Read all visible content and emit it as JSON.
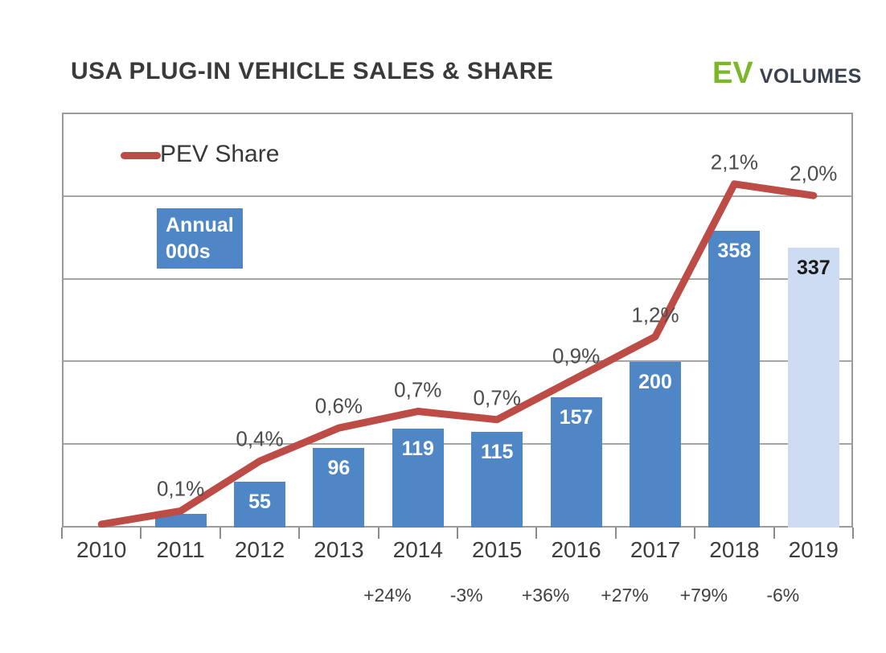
{
  "title": "USA PLUG-IN VEHICLE SALES & SHARE",
  "logo": {
    "ev": "EV",
    "volumes": "VOLUMES"
  },
  "legend": {
    "pev_share_label": "PEV Share",
    "bar_legend_line1": "Annual",
    "bar_legend_line2": "000s"
  },
  "colors": {
    "bar_blue": "#4e86c6",
    "bar_light_blue": "#cddcf2",
    "line_red": "#bd4b46",
    "logo_green": "#7ab829",
    "logo_navy": "#3a4250",
    "bar_label_white": "#ffffff",
    "bar_label_dark": "#1a1a1a"
  },
  "chart_data": {
    "type": "bar",
    "title": "USA PLUG-IN VEHICLE SALES & SHARE",
    "categories": [
      "2010",
      "2011",
      "2012",
      "2013",
      "2014",
      "2015",
      "2016",
      "2017",
      "2018",
      "2019"
    ],
    "series": [
      {
        "name": "Annual 000s",
        "type": "bar",
        "values": [
          0,
          16,
          55,
          96,
          119,
          115,
          157,
          200,
          358,
          337
        ],
        "bar_labels": [
          "",
          "",
          "55",
          "96",
          "119",
          "115",
          "157",
          "200",
          "358",
          "337"
        ],
        "ylim": [
          0,
          500
        ],
        "last_bar_highlighted": true
      },
      {
        "name": "PEV Share",
        "type": "line",
        "values": [
          0.02,
          0.1,
          0.4,
          0.6,
          0.7,
          0.65,
          0.9,
          1.15,
          2.07,
          2.0
        ],
        "point_labels": [
          "",
          "0,1%",
          "0,4%",
          "0,6%",
          "0,7%",
          "0,7%",
          "0,9%",
          "1,2%",
          "2,1%",
          "2,0%"
        ],
        "ylim": [
          0,
          2.5
        ]
      }
    ],
    "yoy_growth": {
      "categories": [
        "2014",
        "2015",
        "2016",
        "2017",
        "2018",
        "2019"
      ],
      "labels": [
        "+24%",
        "-3%",
        "+36%",
        "+27%",
        "+79%",
        "-6%"
      ]
    },
    "grid": true,
    "legend_position": "top-left",
    "axis_tick_labels_visible": false
  }
}
